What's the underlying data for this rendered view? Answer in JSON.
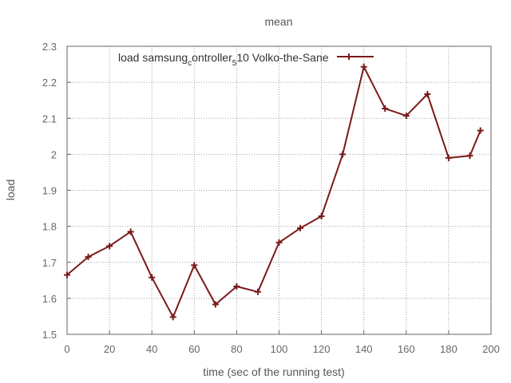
{
  "chart_data": {
    "type": "line",
    "title": "mean",
    "xlabel": "time (sec of the running test)",
    "ylabel": "load",
    "xlim": [
      0,
      200
    ],
    "ylim": [
      1.5,
      2.3
    ],
    "grid": true,
    "legend_position": "top",
    "x_ticks": [
      "0",
      "20",
      "40",
      "60",
      "80",
      "100",
      "120",
      "140",
      "160",
      "180",
      "200"
    ],
    "y_ticks": [
      "1.5",
      "1.6",
      "1.7",
      "1.8",
      "1.9",
      "2",
      "2.1",
      "2.2",
      "2.3"
    ],
    "series": [
      {
        "name": "load_samsung_controller_5_10_Volko-the-Sane",
        "legend_text": "load samsung controller 5 10 Volko-the-Sane",
        "legend_parts": {
          "main_1": "load samsung",
          "sub_1": "c",
          "main_2": "ontroller",
          "sub_2": "5",
          "main_3": "10 Volko-the-Sane"
        },
        "color": "#7a1a1a",
        "marker": "plus",
        "x": [
          0,
          10,
          20,
          30,
          40,
          50,
          60,
          70,
          80,
          90,
          100,
          110,
          120,
          130,
          140,
          150,
          160,
          170,
          180,
          190,
          195
        ],
        "y": [
          1.665,
          1.715,
          1.745,
          1.785,
          1.658,
          1.548,
          1.692,
          1.583,
          1.633,
          1.618,
          1.755,
          1.795,
          1.828,
          2.0,
          2.243,
          2.127,
          2.107,
          2.167,
          1.99,
          1.996,
          2.066
        ]
      }
    ]
  }
}
